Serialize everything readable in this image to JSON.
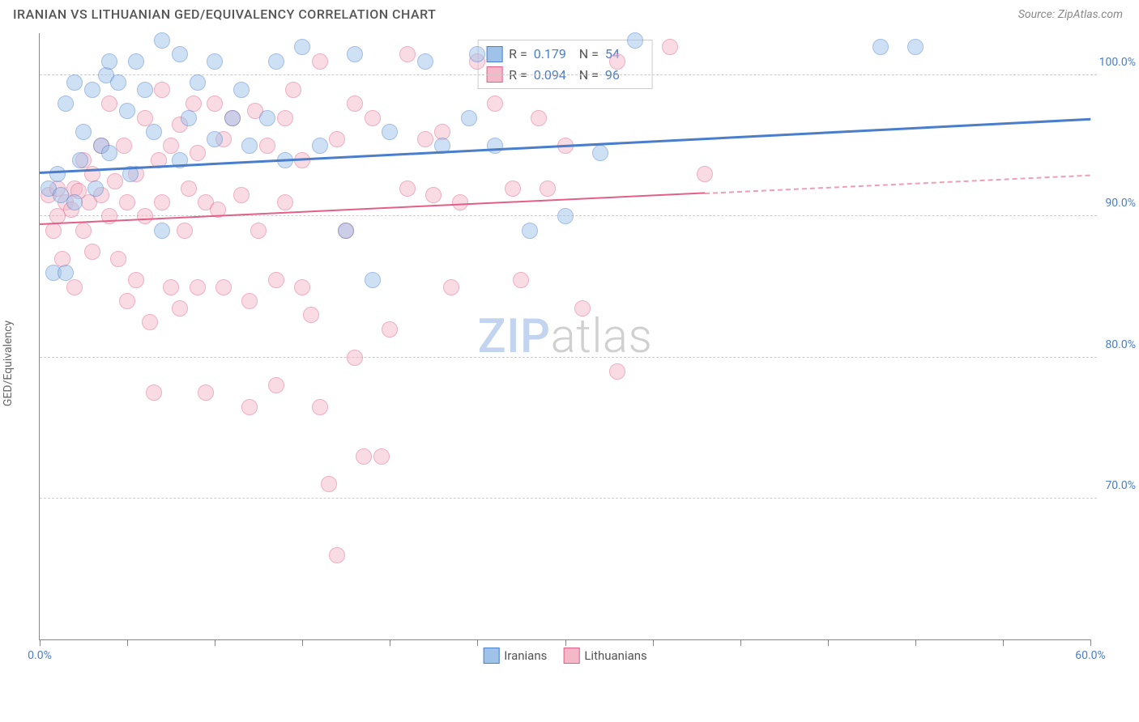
{
  "title": "IRANIAN VS LITHUANIAN GED/EQUIVALENCY CORRELATION CHART",
  "source": "Source: ZipAtlas.com",
  "y_axis_label": "GED/Equivalency",
  "watermark": {
    "part1": "ZIP",
    "part2": "atlas"
  },
  "chart": {
    "type": "scatter",
    "background_color": "#ffffff",
    "grid_color": "#cccccc",
    "axis_color": "#888888",
    "xlim": [
      0,
      60
    ],
    "ylim": [
      60,
      103
    ],
    "x_ticks": [
      0,
      5,
      10,
      15,
      20,
      25,
      30,
      35,
      40,
      45,
      50,
      55,
      60
    ],
    "x_tick_labels": {
      "0": "0.0%",
      "60": "60.0%"
    },
    "y_ticks": [
      70,
      80,
      90,
      100
    ],
    "y_tick_labels": {
      "70": "70.0%",
      "80": "80.0%",
      "90": "90.0%",
      "100": "100.0%"
    },
    "tick_label_color": "#4a7ecc",
    "tick_label_fontsize": 14,
    "marker_radius": 10,
    "marker_opacity": 0.5,
    "series": [
      {
        "name": "Iranians",
        "color_fill": "#9fc2e9",
        "color_stroke": "#4a7ecc",
        "r_value": "0.179",
        "n_value": "54",
        "trend": {
          "x1": 0,
          "y1": 93.2,
          "x2": 60,
          "y2": 97.0,
          "dashed_from": null,
          "width": 3
        },
        "points": [
          [
            0.5,
            92
          ],
          [
            0.8,
            86
          ],
          [
            1,
            93
          ],
          [
            1.2,
            91.5
          ],
          [
            1.5,
            86
          ],
          [
            1.5,
            98
          ],
          [
            2,
            91
          ],
          [
            2,
            99.5
          ],
          [
            2.3,
            94
          ],
          [
            2.5,
            96
          ],
          [
            3,
            99
          ],
          [
            3.2,
            92
          ],
          [
            3.5,
            95
          ],
          [
            3.8,
            100
          ],
          [
            4,
            94.5
          ],
          [
            4,
            101
          ],
          [
            4.5,
            99.5
          ],
          [
            5,
            97.5
          ],
          [
            5.2,
            93
          ],
          [
            5.5,
            101
          ],
          [
            6,
            99
          ],
          [
            6.5,
            96
          ],
          [
            7,
            102.5
          ],
          [
            7,
            89
          ],
          [
            8,
            94
          ],
          [
            8,
            101.5
          ],
          [
            8.5,
            97
          ],
          [
            9,
            99.5
          ],
          [
            10,
            95.5
          ],
          [
            10,
            101
          ],
          [
            11,
            97
          ],
          [
            11.5,
            99
          ],
          [
            12,
            95
          ],
          [
            13,
            97
          ],
          [
            13.5,
            101
          ],
          [
            14,
            94
          ],
          [
            15,
            102
          ],
          [
            16,
            95
          ],
          [
            17.5,
            89
          ],
          [
            18,
            101.5
          ],
          [
            19,
            85.5
          ],
          [
            20,
            96
          ],
          [
            22,
            101
          ],
          [
            23,
            95
          ],
          [
            24.5,
            97
          ],
          [
            25,
            101.5
          ],
          [
            26,
            95
          ],
          [
            28,
            89
          ],
          [
            30,
            90
          ],
          [
            32,
            94.5
          ],
          [
            34,
            102.5
          ],
          [
            48,
            102
          ],
          [
            50,
            102
          ]
        ]
      },
      {
        "name": "Lithuanians",
        "color_fill": "#f5b8c9",
        "color_stroke": "#e26088",
        "r_value": "0.094",
        "n_value": "96",
        "trend": {
          "x1": 0,
          "y1": 89.5,
          "x2": 60,
          "y2": 93.0,
          "dashed_from": 38,
          "width": 2.5
        },
        "points": [
          [
            0.5,
            91.5
          ],
          [
            0.8,
            89
          ],
          [
            1,
            92
          ],
          [
            1,
            90
          ],
          [
            1.3,
            87
          ],
          [
            1.5,
            91
          ],
          [
            1.8,
            90.5
          ],
          [
            2,
            92
          ],
          [
            2,
            85
          ],
          [
            2.2,
            91.8
          ],
          [
            2.5,
            89
          ],
          [
            2.5,
            94
          ],
          [
            2.8,
            91
          ],
          [
            3,
            93
          ],
          [
            3,
            87.5
          ],
          [
            3.5,
            91.5
          ],
          [
            3.5,
            95
          ],
          [
            4,
            90
          ],
          [
            4,
            98
          ],
          [
            4.3,
            92.5
          ],
          [
            4.5,
            87
          ],
          [
            4.8,
            95
          ],
          [
            5,
            91
          ],
          [
            5,
            84
          ],
          [
            5.5,
            85.5
          ],
          [
            5.5,
            93
          ],
          [
            6,
            97
          ],
          [
            6,
            90
          ],
          [
            6.3,
            82.5
          ],
          [
            6.5,
            77.5
          ],
          [
            6.8,
            94
          ],
          [
            7,
            91
          ],
          [
            7,
            99
          ],
          [
            7.5,
            85
          ],
          [
            7.5,
            95
          ],
          [
            8,
            96.5
          ],
          [
            8,
            83.5
          ],
          [
            8.3,
            89
          ],
          [
            8.5,
            92
          ],
          [
            8.8,
            98
          ],
          [
            9,
            94.5
          ],
          [
            9,
            85
          ],
          [
            9.5,
            77.5
          ],
          [
            9.5,
            91
          ],
          [
            10,
            98
          ],
          [
            10.2,
            90.5
          ],
          [
            10.5,
            85
          ],
          [
            10.5,
            95.5
          ],
          [
            11,
            97
          ],
          [
            11.5,
            91.5
          ],
          [
            12,
            84
          ],
          [
            12,
            76.5
          ],
          [
            12.3,
            97.5
          ],
          [
            12.5,
            89
          ],
          [
            13,
            95
          ],
          [
            13.5,
            85.5
          ],
          [
            13.5,
            78
          ],
          [
            14,
            97
          ],
          [
            14,
            91
          ],
          [
            14.5,
            99
          ],
          [
            15,
            85
          ],
          [
            15,
            94
          ],
          [
            15.5,
            83
          ],
          [
            16,
            101
          ],
          [
            16,
            76.5
          ],
          [
            16.5,
            71
          ],
          [
            17,
            95.5
          ],
          [
            17,
            66
          ],
          [
            17.5,
            89
          ],
          [
            18,
            80
          ],
          [
            18,
            98
          ],
          [
            18.5,
            73
          ],
          [
            19,
            97
          ],
          [
            19.5,
            73
          ],
          [
            20,
            82
          ],
          [
            21,
            92
          ],
          [
            21,
            101.5
          ],
          [
            22,
            95.5
          ],
          [
            22.5,
            91.5
          ],
          [
            23,
            96
          ],
          [
            23.5,
            85
          ],
          [
            24,
            91
          ],
          [
            25,
            101
          ],
          [
            26,
            98
          ],
          [
            27,
            92
          ],
          [
            27.5,
            85.5
          ],
          [
            28.5,
            97
          ],
          [
            29,
            92
          ],
          [
            30,
            95
          ],
          [
            31,
            83.5
          ],
          [
            33,
            79
          ],
          [
            33,
            101
          ],
          [
            36,
            102
          ],
          [
            38,
            93
          ]
        ]
      }
    ]
  },
  "stats_legend": {
    "r_label": "R =",
    "n_label": "N ="
  },
  "bottom_legend": {
    "item1": "Iranians",
    "item2": "Lithuanians"
  }
}
